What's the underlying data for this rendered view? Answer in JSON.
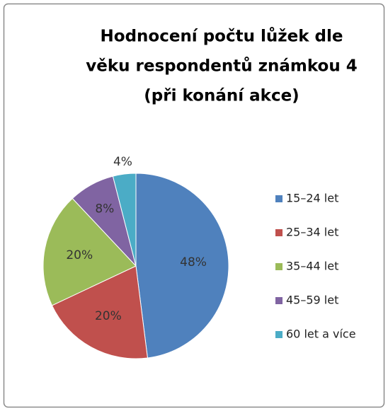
{
  "chart_data": {
    "type": "pie",
    "title": [
      "Hodnocení počtu lůžek  dle",
      "věku respondentů známkou 4",
      "(při konání akce)"
    ],
    "categories": [
      "15–24 let",
      "25–34 let",
      "35–44 let",
      "45–59 let",
      "60 let a více"
    ],
    "values": [
      48,
      20,
      20,
      8,
      4
    ],
    "value_labels": [
      "48%",
      "20%",
      "20%",
      "8%",
      "4%"
    ],
    "colors": [
      "#4f81bd",
      "#c0504d",
      "#9bbb59",
      "#8064a2",
      "#4bacc6"
    ],
    "legend": "right"
  }
}
